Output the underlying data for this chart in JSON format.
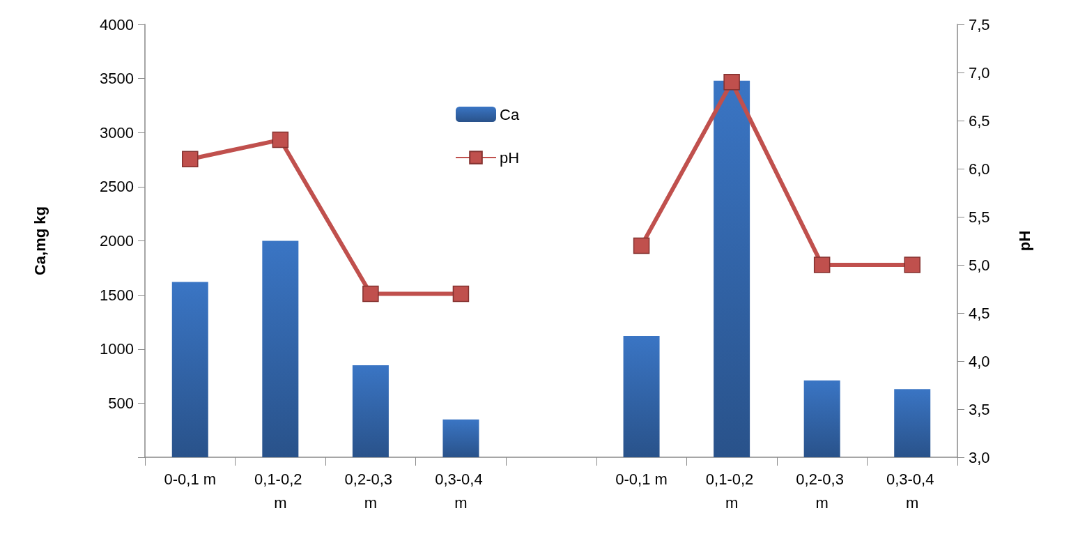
{
  "chart_data": {
    "type": "bar",
    "categories": [
      "0-0,1 m",
      "0,1-0,2 m",
      "0,2-0,3 m",
      "0,3-0,4 m",
      null,
      "0-0,1 m",
      "0,1-0,2 m",
      "0,2-0,3 m",
      "0,3-0,4 m"
    ],
    "series": [
      {
        "name": "Ca",
        "color": "#3a75c4",
        "values": [
          1620,
          2000,
          850,
          350,
          null,
          1120,
          3480,
          710,
          630
        ]
      },
      {
        "name": "pH",
        "type": "line",
        "axis": "y2",
        "color": "#c0504d",
        "values": [
          6.1,
          6.3,
          4.7,
          4.7,
          null,
          5.2,
          6.9,
          5.0,
          5.0
        ]
      }
    ],
    "ylabel": "Ca,mg kg",
    "y2label": "pH",
    "ylim": [
      0,
      4000
    ],
    "yticks": [
      {
        "value": 0,
        "label": null
      },
      500,
      1000,
      1500,
      2000,
      2500,
      3000,
      3500,
      4000
    ],
    "y2lim": [
      3,
      7.5
    ],
    "y2ticks": [
      {
        "value": 3,
        "label": "3,0"
      },
      {
        "value": 3.5,
        "label": "3,5"
      },
      {
        "value": 4,
        "label": "4,0"
      },
      {
        "value": 4.5,
        "label": "4,5"
      },
      {
        "value": 5,
        "label": "5,0"
      },
      {
        "value": 5.5,
        "label": "5,5"
      },
      {
        "value": 6,
        "label": "6,0"
      },
      {
        "value": 6.5,
        "label": "6,5"
      },
      {
        "value": 7,
        "label": "7,0"
      },
      {
        "value": 7.5,
        "label": "7,5"
      }
    ],
    "marker": "square",
    "grid": false,
    "legend": "top"
  }
}
